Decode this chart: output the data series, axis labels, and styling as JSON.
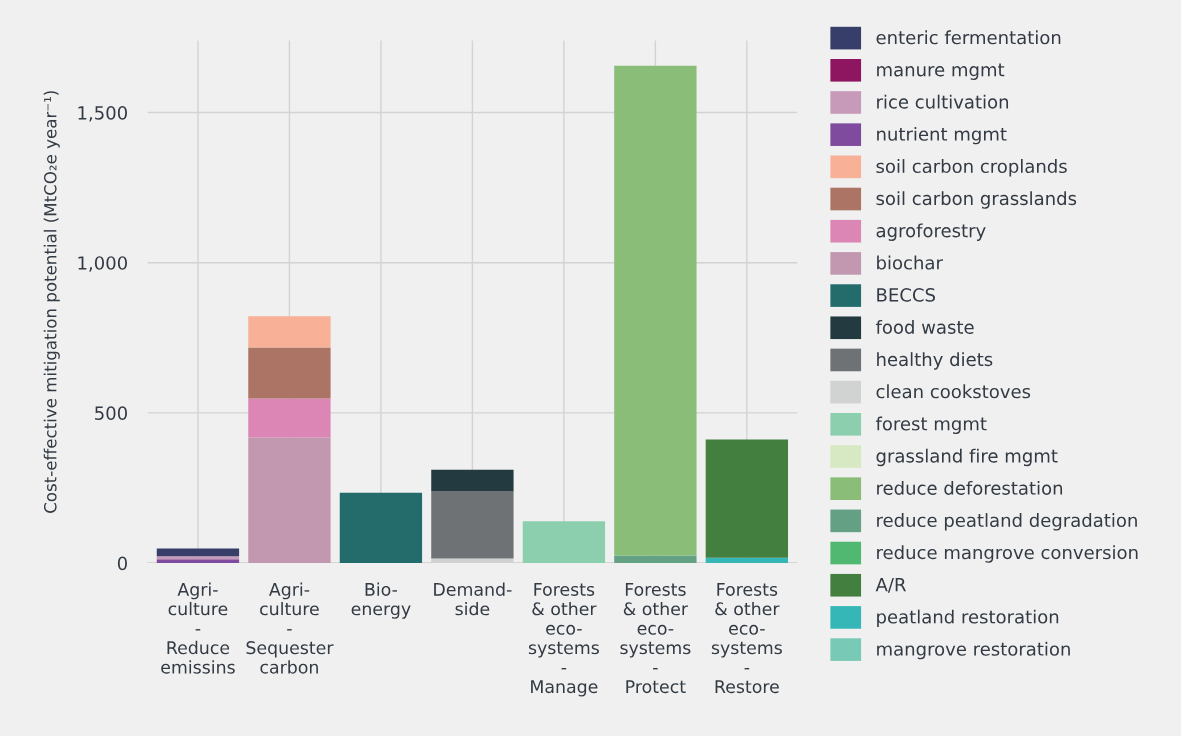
{
  "chart_data": {
    "type": "bar",
    "stacked": true,
    "ylabel": "Cost-effective mitigation potential (MtCO₂e year⁻¹)",
    "categories": [
      "Agri-\nculture\n-\nReduce\nemissins",
      "Agri-\nculture\n-\nSequester\ncarbon",
      "Bio-\nenergy",
      "Demand-\nside",
      "Forests\n& other\neco-\nsystems\n-\nManage",
      "Forests\n& other\neco-\nsystems\n-\nProtect",
      "Forests\n& other\neco-\nsystems\n-\nRestore"
    ],
    "ylim": [
      0,
      1740
    ],
    "yticks": [
      0,
      {
        "value": 500,
        "label": "500"
      },
      {
        "value": 1000,
        "label": "1,000"
      },
      {
        "value": 1500,
        "label": "1,500"
      }
    ],
    "grid": true,
    "legend": "right",
    "series": [
      {
        "name": "mangrove restoration",
        "color": "#78c9b5",
        "values": [
          null,
          null,
          null,
          null,
          null,
          null,
          null
        ]
      },
      {
        "name": "peatland restoration",
        "color": "#35b7b7",
        "values": [
          null,
          null,
          null,
          null,
          null,
          null,
          18
        ]
      },
      {
        "name": "A/R",
        "color": "#437f3e",
        "values": [
          null,
          null,
          null,
          null,
          null,
          null,
          393
        ]
      },
      {
        "name": "reduce mangrove conversion",
        "color": "#50b870",
        "values": [
          null,
          null,
          null,
          null,
          null,
          null,
          null
        ]
      },
      {
        "name": "reduce peatland degradation",
        "color": "#64a083",
        "values": [
          null,
          null,
          null,
          null,
          null,
          25,
          null
        ]
      },
      {
        "name": "reduce deforestation",
        "color": "#8abd78",
        "values": [
          null,
          null,
          null,
          null,
          null,
          1631,
          null
        ]
      },
      {
        "name": "grassland fire mgmt",
        "color": "#d6e9c2",
        "values": [
          null,
          null,
          null,
          null,
          null,
          null,
          null
        ]
      },
      {
        "name": "forest mgmt",
        "color": "#8ccfae",
        "values": [
          null,
          null,
          null,
          null,
          139,
          null,
          null
        ]
      },
      {
        "name": "clean cookstoves",
        "color": "#d1d3d2",
        "values": [
          null,
          null,
          null,
          15,
          null,
          null,
          null
        ]
      },
      {
        "name": "healthy diets",
        "color": "#6e7275",
        "values": [
          null,
          null,
          null,
          223,
          null,
          null,
          null
        ]
      },
      {
        "name": "food waste",
        "color": "#223a40",
        "values": [
          null,
          null,
          null,
          73,
          null,
          null,
          null
        ]
      },
      {
        "name": "BECCS",
        "color": "#246c6c",
        "values": [
          null,
          null,
          234,
          null,
          null,
          null,
          null
        ]
      },
      {
        "name": "biochar",
        "color": "#c298b0",
        "values": [
          null,
          418,
          null,
          null,
          null,
          null,
          null
        ]
      },
      {
        "name": "agroforestry",
        "color": "#dc86b6",
        "values": [
          null,
          130,
          null,
          null,
          null,
          null,
          null
        ]
      },
      {
        "name": "soil carbon grasslands",
        "color": "#ac7464",
        "values": [
          null,
          170,
          null,
          null,
          null,
          null,
          null
        ]
      },
      {
        "name": "soil carbon croplands",
        "color": "#f8b097",
        "values": [
          null,
          104,
          null,
          null,
          null,
          null,
          null
        ]
      },
      {
        "name": "nutrient mgmt",
        "color": "#7e4b9e",
        "values": [
          13,
          null,
          null,
          null,
          null,
          null,
          null
        ]
      },
      {
        "name": "rice cultivation",
        "color": "#c69ab8",
        "values": [
          10,
          null,
          null,
          null,
          null,
          null,
          null
        ]
      },
      {
        "name": "manure mgmt",
        "color": "#8e1560",
        "values": [
          null,
          null,
          null,
          null,
          null,
          null,
          null
        ]
      },
      {
        "name": "enteric fermentation",
        "color": "#383e6a",
        "values": [
          25,
          null,
          null,
          null,
          null,
          null,
          null
        ]
      }
    ]
  }
}
